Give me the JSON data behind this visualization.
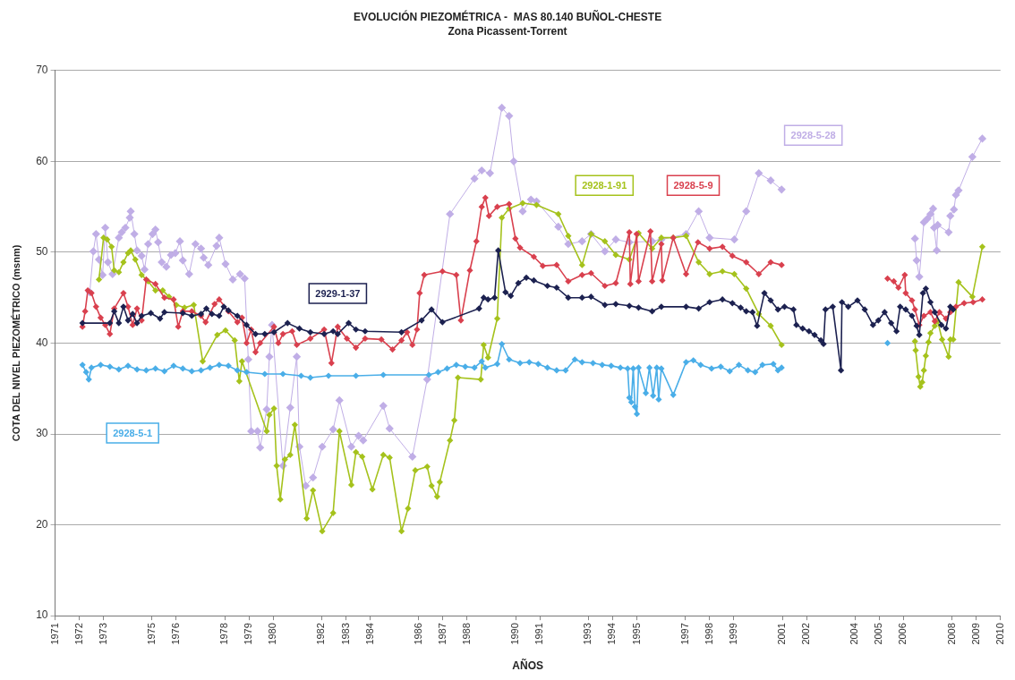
{
  "chart_data": {
    "type": "line",
    "title": "EVOLUCIÓN PIEZOMÉTRICA -  MAS 80.140 BUÑOL-CHESTE",
    "subtitle": "Zona Picassent-Torrent",
    "xlabel": "AÑOS",
    "ylabel": "COTA DEL NIVEL PIEZOMÉTRICO (msnm)",
    "xlim": [
      1971,
      2010
    ],
    "xticks": [
      1971,
      1972,
      1973,
      1975,
      1976,
      1978,
      1979,
      1980,
      1982,
      1983,
      1984,
      1986,
      1987,
      1988,
      1990,
      1991,
      1993,
      1994,
      1995,
      1997,
      1998,
      1999,
      2001,
      2002,
      2004,
      2005,
      2006,
      2008,
      2009,
      2010
    ],
    "ylim": [
      10,
      70
    ],
    "yticks": [
      10,
      20,
      30,
      40,
      50,
      60,
      70
    ],
    "grid": "y",
    "legend": false,
    "marker": "diamond",
    "series": [
      {
        "name": "2928-5-1",
        "color": "#4aaee8",
        "x": [
          1972.13,
          1972.28,
          1972.39,
          1972.5,
          1972.88,
          1973.26,
          1973.63,
          1974.01,
          1974.38,
          1974.76,
          1975.14,
          1975.51,
          1975.89,
          1976.27,
          1976.64,
          1977.02,
          1977.39,
          1977.77,
          1978.15,
          1978.52,
          1978.9,
          1979.65,
          1980.4,
          1981.15,
          1981.53,
          1982.28,
          1983.41,
          1984.54,
          1986.42,
          1986.8,
          1987.17,
          1987.55,
          1987.92,
          1988.3,
          1988.6,
          1988.75,
          1989.24,
          1989.43,
          1989.73,
          1990.18,
          1990.56,
          1990.93,
          1991.31,
          1991.69,
          1992.06,
          1992.44,
          1992.74,
          1993.19,
          1993.57,
          1993.94,
          1994.32,
          1994.62,
          1994.69,
          1994.77,
          1994.85,
          1994.92,
          1995.0,
          1995.07,
          1995.37,
          1995.52,
          1995.67,
          1995.82,
          1995.9,
          1996.01,
          1996.5,
          1997.03,
          1997.33,
          1997.63,
          1998.08,
          1998.46,
          1998.83,
          1999.21,
          1999.58,
          1999.88,
          2000.18,
          2000.63,
          2000.82,
          2000.97,
          2003,
          2005.34
        ],
        "values": [
          37.6,
          36.8,
          36.0,
          37.3,
          37.6,
          37.4,
          37.1,
          37.5,
          37.1,
          37.0,
          37.2,
          36.9,
          37.5,
          37.2,
          36.9,
          37.0,
          37.3,
          37.6,
          37.5,
          37.0,
          36.8,
          36.6,
          36.6,
          36.4,
          36.2,
          36.4,
          36.4,
          36.5,
          36.5,
          36.8,
          37.2,
          37.6,
          37.4,
          37.3,
          38.0,
          37.3,
          37.7,
          39.9,
          38.2,
          37.8,
          37.9,
          37.7,
          37.3,
          37.0,
          37.0,
          38.2,
          37.9,
          37.8,
          37.6,
          37.5,
          37.3,
          37.2,
          34.0,
          33.5,
          37.2,
          33.0,
          32.2,
          37.3,
          34.5,
          37.3,
          34.2,
          37.3,
          33.8,
          37.2,
          34.3,
          37.9,
          38.1,
          37.6,
          37.2,
          37.4,
          36.9,
          37.6,
          37.0,
          36.8,
          37.6,
          37.7,
          37.0,
          37.3,
          null,
          40.0
        ]
      },
      {
        "name": "2929-1-37",
        "color": "#1c2150",
        "x": [
          1972.13,
          1973.26,
          1973.44,
          1973.63,
          1973.82,
          1974.01,
          1974.2,
          1974.38,
          1974.57,
          1974.95,
          1975.33,
          1975.51,
          1976.27,
          1976.64,
          1977.02,
          1977.24,
          1977.47,
          1977.77,
          1977.96,
          1978.15,
          1978.52,
          1978.9,
          1979.27,
          1979.65,
          1980.03,
          1980.59,
          1981.08,
          1981.53,
          1982.1,
          1982.47,
          1982.66,
          1983.11,
          1983.41,
          1983.79,
          1985.29,
          1986.12,
          1986.53,
          1986.98,
          1988.49,
          1988.68,
          1988.86,
          1989.13,
          1989.28,
          1989.58,
          1989.8,
          1990.11,
          1990.44,
          1990.75,
          1991.31,
          1991.69,
          1992.17,
          1992.74,
          1993.11,
          1993.68,
          1994.13,
          1994.69,
          1995.07,
          1995.63,
          1996.01,
          1997.03,
          1997.55,
          1998.0,
          1998.53,
          1998.94,
          1999.28,
          1999.51,
          1999.77,
          1999.96,
          2000.26,
          2000.52,
          2000.82,
          2001.09,
          2001.46,
          2001.58,
          2001.84,
          2002.1,
          2002.33,
          2002.59,
          2002.7,
          2002.78,
          2003.08,
          2003.42,
          2003.46,
          2003.72,
          2004.1,
          2004.4,
          2004.74,
          2004.96,
          2005.22,
          2005.49,
          2005.71,
          2005.86,
          2006.09,
          2006.35,
          2006.54,
          2006.65,
          2006.8,
          2006.92,
          2007.11,
          2007.29,
          2007.56,
          2007.75,
          2007.93,
          2008.05
        ],
        "values": [
          42.2,
          42.2,
          43.5,
          42.2,
          44.0,
          42.5,
          43.2,
          42.2,
          43.0,
          43.3,
          42.7,
          43.4,
          43.3,
          43.0,
          43.2,
          43.8,
          43.2,
          43.0,
          44.0,
          43.6,
          43.0,
          42.0,
          41.0,
          41.0,
          41.2,
          42.2,
          41.6,
          41.2,
          41.0,
          41.3,
          41.0,
          42.2,
          41.5,
          41.3,
          41.2,
          42.5,
          43.7,
          42.3,
          43.8,
          45.0,
          44.8,
          45.0,
          50.2,
          45.6,
          45.2,
          46.6,
          47.2,
          46.9,
          46.3,
          46.1,
          45.0,
          45.0,
          45.1,
          44.2,
          44.3,
          44.1,
          43.9,
          43.5,
          44.0,
          44.0,
          43.8,
          44.5,
          44.8,
          44.4,
          43.9,
          43.5,
          43.4,
          41.9,
          45.5,
          44.7,
          43.7,
          44.0,
          43.7,
          42.0,
          41.6,
          41.3,
          40.9,
          40.3,
          39.9,
          43.7,
          44.0,
          37.0,
          44.5,
          44.0,
          44.7,
          43.7,
          42.0,
          42.5,
          43.4,
          42.2,
          41.3,
          44.0,
          43.7,
          43.0,
          41.9,
          40.9,
          45.5,
          46.0,
          44.5,
          43.4,
          42.0,
          41.6,
          44.0,
          43.7
        ]
      },
      {
        "name": "2928-5-9",
        "color": "#d9404e",
        "x": [
          1972.13,
          1972.24,
          1972.35,
          1972.5,
          1972.69,
          1972.88,
          1973.07,
          1973.26,
          1973.44,
          1973.82,
          1974.01,
          1974.2,
          1974.38,
          1974.57,
          1974.76,
          1975.14,
          1975.51,
          1975.89,
          1976.08,
          1976.27,
          1976.64,
          1977.02,
          1977.21,
          1977.58,
          1977.77,
          1978.15,
          1978.52,
          1978.71,
          1978.9,
          1979.09,
          1979.27,
          1979.46,
          1980.03,
          1980.21,
          1980.4,
          1980.78,
          1980.97,
          1981.53,
          1982.1,
          1982.4,
          1982.66,
          1983.04,
          1983.41,
          1983.79,
          1984.46,
          1984.92,
          1985.29,
          1985.52,
          1985.74,
          1985.93,
          1986.04,
          1986.23,
          1986.98,
          1987.55,
          1987.74,
          1988.11,
          1988.38,
          1988.6,
          1988.75,
          1988.9,
          1989.24,
          1989.73,
          1989.99,
          1990.18,
          1990.75,
          1991.12,
          1991.69,
          1992.17,
          1992.74,
          1993.11,
          1993.68,
          1994.13,
          1994.69,
          1994.73,
          1994.99,
          1995.07,
          1995.56,
          1995.63,
          1996.01,
          1996.05,
          1996.5,
          1997.03,
          1997.52,
          1998.0,
          1998.53,
          1998.94,
          1999.51,
          2000.03,
          2000.52,
          2000.97,
          2003,
          2005.34,
          2005.6,
          2005.79,
          2006.05,
          2006.09,
          2006.35,
          2006.47,
          2006.65,
          2006.84,
          2007.11,
          2007.29,
          2007.48,
          2007.75,
          2007.93,
          2008.16,
          2008.5,
          2008.87,
          2009.25
        ],
        "values": [
          41.8,
          43.5,
          45.8,
          45.5,
          44.0,
          42.8,
          42.0,
          41.0,
          43.8,
          45.5,
          44.0,
          42.0,
          43.8,
          42.5,
          47.0,
          46.5,
          45.0,
          44.8,
          41.8,
          43.5,
          43.5,
          43.0,
          42.3,
          44.3,
          44.8,
          43.5,
          42.3,
          42.8,
          40.0,
          41.5,
          39.0,
          40.0,
          41.8,
          40.0,
          41.0,
          41.3,
          39.8,
          40.5,
          41.5,
          37.8,
          41.8,
          40.5,
          39.5,
          40.5,
          40.4,
          39.3,
          40.3,
          41.2,
          39.8,
          41.5,
          45.5,
          47.5,
          47.9,
          47.5,
          42.5,
          48.0,
          51.2,
          55.0,
          56.0,
          54.0,
          55.0,
          55.3,
          51.5,
          50.5,
          49.5,
          48.5,
          48.6,
          46.8,
          47.5,
          47.7,
          46.3,
          46.6,
          52.2,
          46.5,
          52.0,
          46.8,
          52.3,
          46.8,
          50.9,
          46.9,
          51.6,
          47.6,
          51.1,
          50.4,
          50.6,
          49.6,
          48.9,
          47.6,
          48.9,
          48.6,
          null,
          47.1,
          46.8,
          46.1,
          47.5,
          45.5,
          44.7,
          43.7,
          42.0,
          43.0,
          43.4,
          42.4,
          43.4,
          42.7,
          43.4,
          44.0,
          44.4,
          44.5,
          44.8
        ]
      },
      {
        "name": "2928-1-91",
        "color": "#a5c21c",
        "x": [
          1972.81,
          1973.0,
          1973.15,
          1973.33,
          1973.44,
          1973.63,
          1973.82,
          1974.01,
          1974.12,
          1974.31,
          1974.57,
          1974.84,
          1975.14,
          1975.44,
          1975.7,
          1976.0,
          1976.34,
          1976.72,
          1977.09,
          1977.69,
          1978.03,
          1978.41,
          1978.6,
          1978.71,
          1979.73,
          1979.84,
          1980.03,
          1980.14,
          1980.29,
          1980.48,
          1980.7,
          1980.89,
          1981.38,
          1981.64,
          1982.02,
          1982.47,
          1982.73,
          1983.22,
          1983.41,
          1983.67,
          1984.09,
          1984.54,
          1984.8,
          1985.29,
          1985.56,
          1985.86,
          1986.35,
          1986.53,
          1986.76,
          1986.87,
          1987.29,
          1987.47,
          1987.62,
          1988.56,
          1988.68,
          1988.86,
          1989.24,
          1989.43,
          1989.73,
          1990.29,
          1990.86,
          1991.76,
          1992.17,
          1992.74,
          1993.11,
          1993.68,
          1994.13,
          1994.69,
          1995.07,
          1995.63,
          1996.01,
          1996.5,
          1997.03,
          1997.55,
          1998.0,
          1998.53,
          1999.02,
          1999.51,
          2000.03,
          2000.52,
          2000.97,
          2003,
          2006.47,
          2006.5,
          2006.62,
          2006.69,
          2006.77,
          2006.84,
          2006.92,
          2007.03,
          2007.11,
          2007.29,
          2007.41,
          2007.59,
          2007.86,
          2007.93,
          2008.05,
          2008.27,
          2008.84,
          2009.25
        ],
        "values": [
          47.0,
          51.6,
          51.4,
          50.6,
          48.0,
          47.8,
          48.9,
          49.9,
          50.2,
          49.2,
          47.5,
          46.8,
          45.8,
          45.8,
          45.1,
          44.2,
          43.9,
          44.2,
          38.0,
          40.9,
          41.4,
          40.3,
          35.8,
          38.0,
          30.3,
          32.1,
          32.8,
          26.5,
          22.8,
          27.2,
          27.7,
          31.0,
          20.7,
          23.8,
          19.3,
          21.3,
          30.3,
          24.4,
          28.0,
          27.5,
          23.9,
          27.7,
          27.4,
          19.3,
          21.8,
          26.0,
          26.4,
          24.3,
          23.1,
          24.7,
          29.3,
          31.5,
          36.2,
          36.0,
          39.8,
          38.4,
          42.7,
          53.8,
          54.8,
          55.4,
          55.2,
          54.2,
          51.8,
          48.6,
          52.0,
          51.2,
          49.7,
          49.2,
          52.1,
          50.4,
          51.6,
          51.6,
          51.8,
          48.9,
          47.6,
          47.9,
          47.6,
          46.0,
          43.2,
          41.9,
          39.8,
          null,
          40.2,
          39.2,
          36.3,
          35.2,
          35.7,
          37.0,
          38.6,
          40.1,
          41.1,
          41.9,
          42.4,
          40.4,
          38.5,
          40.4,
          40.4,
          46.7,
          45.1,
          50.6
        ]
      },
      {
        "name": "2928-5-28",
        "color": "#c0aee6",
        "x": [
          1972.43,
          1972.58,
          1972.69,
          1972.81,
          1972.96,
          1973.07,
          1973.18,
          1973.37,
          1973.63,
          1973.75,
          1973.9,
          1974.08,
          1974.12,
          1974.27,
          1974.38,
          1974.57,
          1974.69,
          1974.84,
          1975.02,
          1975.14,
          1975.25,
          1975.4,
          1975.59,
          1975.78,
          1975.96,
          1976.15,
          1976.27,
          1976.53,
          1976.79,
          1977.02,
          1977.13,
          1977.32,
          1977.66,
          1977.77,
          1978.03,
          1978.33,
          1978.63,
          1978.82,
          1978.97,
          1979.09,
          1979.35,
          1979.46,
          1979.73,
          1979.84,
          1979.95,
          1980.4,
          1980.7,
          1980.97,
          1981.08,
          1981.34,
          1981.64,
          1982.02,
          1982.47,
          1982.73,
          1983.22,
          1983.52,
          1983.71,
          1984.54,
          1984.8,
          1985.74,
          1986.35,
          1987.29,
          1988.3,
          1988.6,
          1988.94,
          1989.43,
          1989.73,
          1989.92,
          1990.29,
          1990.63,
          1990.86,
          1991.76,
          1992.17,
          1992.74,
          1993.11,
          1993.68,
          1994.13,
          1994.69,
          1995.63,
          1996.01,
          1997.03,
          1997.55,
          1998.0,
          1999.02,
          1999.51,
          2000.03,
          2000.52,
          2000.97,
          2003,
          2006.47,
          2006.54,
          2006.65,
          2006.84,
          2006.99,
          2007.11,
          2007.22,
          2007.26,
          2007.37,
          2007.41,
          2007.86,
          2007.93,
          2008.08,
          2008.16,
          2008.27,
          2008.84,
          2009.25
        ],
        "values": [
          45.6,
          50.1,
          52.0,
          49.2,
          47.5,
          52.7,
          48.9,
          47.6,
          51.6,
          52.2,
          52.7,
          53.8,
          54.5,
          52.0,
          50.2,
          49.6,
          48.1,
          50.9,
          52.0,
          52.5,
          51.1,
          48.9,
          48.4,
          49.7,
          49.9,
          51.2,
          49.1,
          47.6,
          50.9,
          50.4,
          49.4,
          48.6,
          50.7,
          51.6,
          48.7,
          47.0,
          47.6,
          47.1,
          38.2,
          30.3,
          30.3,
          28.5,
          32.7,
          38.5,
          42.0,
          26.5,
          32.9,
          38.5,
          28.6,
          24.3,
          25.2,
          28.6,
          30.5,
          33.7,
          28.6,
          29.8,
          29.3,
          33.1,
          30.6,
          27.5,
          36.0,
          54.2,
          58.1,
          59.0,
          58.7,
          65.9,
          65.0,
          60.0,
          54.5,
          55.8,
          55.6,
          52.8,
          50.9,
          51.2,
          52.0,
          50.1,
          51.4,
          51.1,
          51.2,
          51.4,
          52.0,
          54.5,
          51.6,
          51.4,
          54.5,
          58.7,
          57.9,
          56.9,
          null,
          51.5,
          49.1,
          47.3,
          53.3,
          53.7,
          54.2,
          54.8,
          52.7,
          50.2,
          53.0,
          52.2,
          54.0,
          54.7,
          56.3,
          56.8,
          60.5,
          62.5
        ]
      }
    ]
  }
}
